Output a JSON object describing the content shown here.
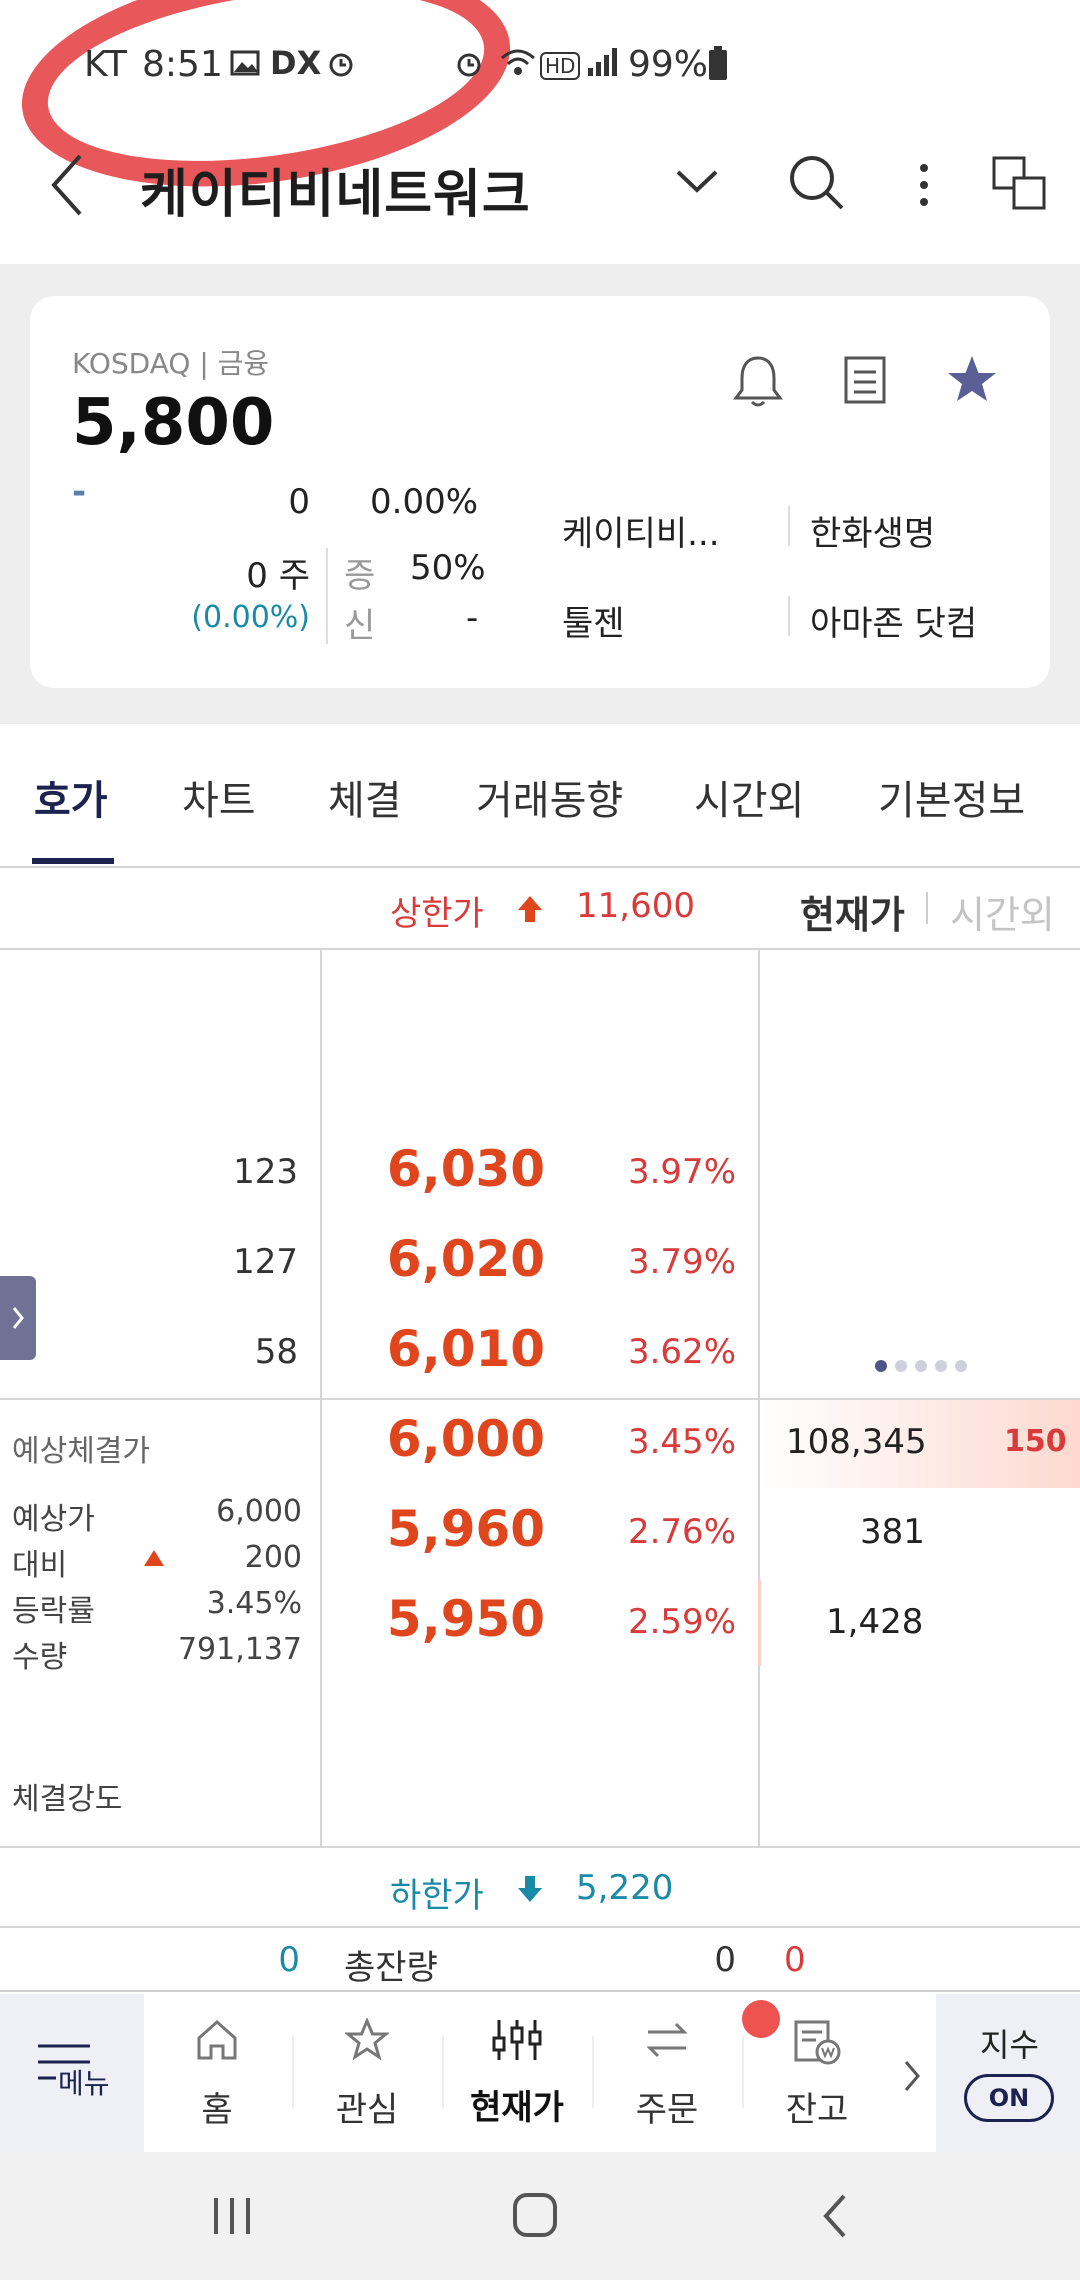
{
  "status_bar": {
    "carrier": "KT",
    "time": "8:51",
    "battery": "99%",
    "icons": [
      "image-icon",
      "dx-icon",
      "alarm-icon",
      "alarm-icon",
      "wifi-icon",
      "hd-icon",
      "signal-icon",
      "battery-icon"
    ]
  },
  "header": {
    "title": "케이티비네트워크"
  },
  "stock": {
    "market": "KOSDAQ | 금융",
    "price": "5,800",
    "change_sign": "-",
    "change": "0",
    "change_pct": "0.00%",
    "volume": "0 주",
    "volume_pct": "(0.00%)",
    "margin_label": "증",
    "margin_value": "50%",
    "credit_label": "신",
    "credit_value": "-",
    "related": [
      "케이티비...",
      "한화생명",
      "툴젠",
      "아마존 닷컴"
    ]
  },
  "tabs": [
    "호가",
    "차트",
    "체결",
    "거래동향",
    "시간외",
    "기본정보"
  ],
  "active_tab": "호가",
  "orderbook": {
    "upper_limit_label": "상한가",
    "upper_limit": "11,600",
    "toggle_current": "현재가",
    "toggle_after": "시간외",
    "asks": [
      {
        "qty": "123",
        "price": "6,030",
        "pct": "3.97%"
      },
      {
        "qty": "127",
        "price": "6,020",
        "pct": "3.79%"
      },
      {
        "qty": "58",
        "price": "6,010",
        "pct": "3.62%"
      }
    ],
    "bids": [
      {
        "price": "6,000",
        "pct": "3.45%",
        "qty": "108,345",
        "change": "150"
      },
      {
        "price": "5,960",
        "pct": "2.76%",
        "qty": "381"
      },
      {
        "price": "5,950",
        "pct": "2.59%",
        "qty": "1,428"
      }
    ],
    "expected": {
      "title": "예상체결가",
      "rows": [
        {
          "label": "예상가",
          "value": "6,000"
        },
        {
          "label": "대비",
          "value": "200"
        },
        {
          "label": "등락률",
          "value": "3.45%"
        },
        {
          "label": "수량",
          "value": "791,137"
        }
      ],
      "strength_label": "체결강도"
    },
    "lower_limit_label": "하한가",
    "lower_limit": "5,220",
    "total_left": "0",
    "total_label": "총잔량",
    "total_mid": "0",
    "total_right": "0"
  },
  "bottom_nav": {
    "menu": "메뉴",
    "items": [
      "홈",
      "관심",
      "현재가",
      "주문",
      "잔고"
    ],
    "active": "현재가",
    "index_label": "지수",
    "index_toggle": "ON"
  },
  "colors": {
    "accent": "#1c2350",
    "up": "#e0461e",
    "down": "#1a8aa6",
    "star": "#5a5f96"
  }
}
